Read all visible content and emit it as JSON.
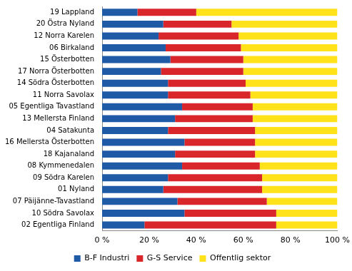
{
  "chart_data": {
    "type": "bar",
    "orientation": "horizontal",
    "stacked": true,
    "categories": [
      "19 Lappland",
      "20 Östra Nyland",
      "12 Norra Karelen",
      "06 Birkaland",
      "15 Österbotten",
      "17 Norra Österbotten",
      "14 Södra Österbotten",
      "11 Norra Savolax",
      "05 Egentliga Tavastland",
      "13 Mellersta Finland",
      "04 Satakunta",
      "16 Mellersta Österbotten",
      "18 Kajanaland",
      "08 Kymmenedalen",
      "09 Södra Karelen",
      "01 Nyland",
      "07 Päijänne-Tavastland",
      "10 Södra Savolax",
      "02 Egentliga Finland"
    ],
    "series": [
      {
        "name": "B-F Industri",
        "color": "#1f5aa6",
        "values": [
          15,
          26,
          24,
          27,
          29,
          25,
          28,
          28,
          34,
          31,
          28,
          35,
          31,
          34,
          28,
          26,
          32,
          35,
          18
        ]
      },
      {
        "name": "G-S Service",
        "color": "#d9262b",
        "values": [
          25,
          29,
          34,
          32,
          31,
          35,
          33,
          35,
          30,
          33,
          37,
          30,
          34,
          33,
          40,
          42,
          38,
          39,
          56
        ]
      },
      {
        "name": "Offentlig sektor",
        "color": "#ffe21a",
        "values": [
          60,
          45,
          42,
          41,
          40,
          40,
          39,
          37,
          36,
          36,
          35,
          35,
          35,
          33,
          32,
          32,
          30,
          26,
          26
        ]
      }
    ],
    "xlim": [
      0,
      100
    ],
    "xticks": [
      {
        "value": 0,
        "label": "0 %"
      },
      {
        "value": 20,
        "label": "20 %"
      },
      {
        "value": 40,
        "label": "40 %"
      },
      {
        "value": 60,
        "label": "60 %"
      },
      {
        "value": 80,
        "label": "80 %"
      },
      {
        "value": 100,
        "label": "100 %"
      }
    ],
    "grid": false,
    "legend": "bottom"
  }
}
